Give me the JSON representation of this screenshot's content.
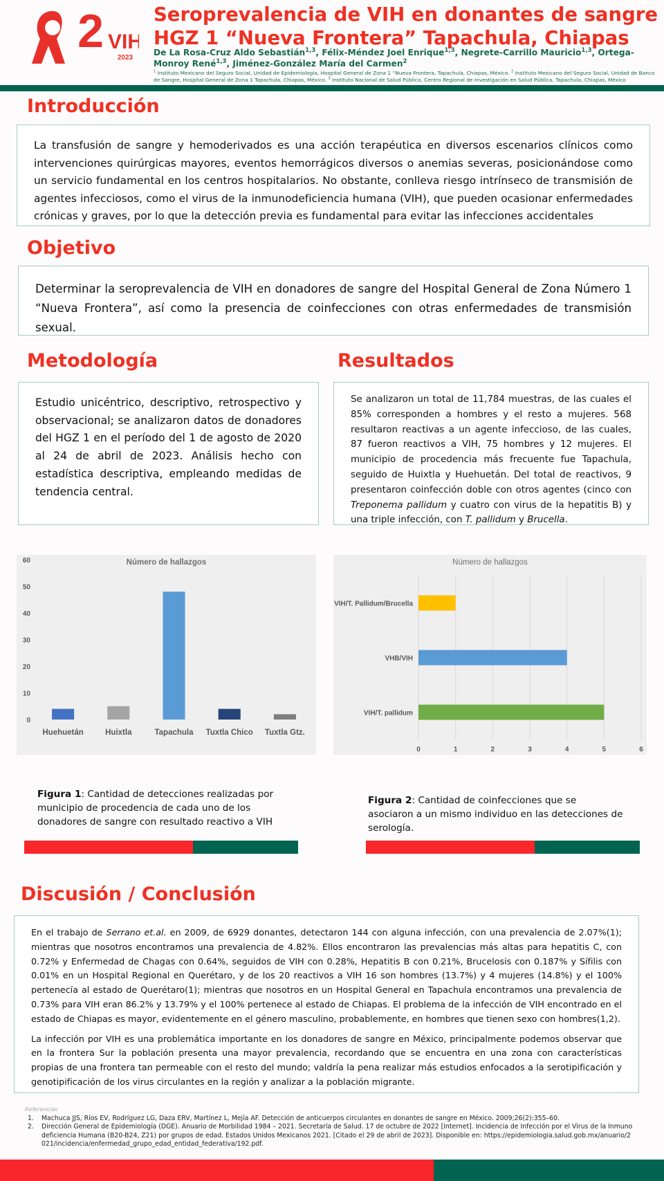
{
  "logo": {
    "number": "2",
    "text": "VIH",
    "year": "2023"
  },
  "header": {
    "title_lines": [
      "Seroprevalencia de VIH en donantes de sangre del",
      "HGZ 1 “Nueva Frontera” Tapachula, Chiapas"
    ],
    "authors": [
      {
        "t": "De La Rosa-Cruz Aldo Sebastián"
      },
      {
        "t": "1,3",
        "sup": true
      },
      {
        "t": ", Félix-Méndez Joel Enrique"
      },
      {
        "t": "1,3",
        "sup": true
      },
      {
        "t": ", Negrete-Carrillo Mauricio"
      },
      {
        "t": "1,3",
        "sup": true
      },
      {
        "t": ", Ortega-Monroy René"
      },
      {
        "t": "1,3",
        "sup": true
      },
      {
        "t": ", Jiménez-González María del Carmen"
      },
      {
        "t": "2",
        "sup": true
      }
    ],
    "affiliations": [
      {
        "t": "1",
        "sup": true
      },
      {
        "t": " Instituto Mexicano del Seguro Social, Unidad de Epidemiología, Hospital General de Zona 1 “Nueva Frontera, Tapachula, Chiapas, México. "
      },
      {
        "t": "2",
        "sup": true
      },
      {
        "t": " Instituto Mexicano del Seguro Social, Unidad de Banco de Sangre, Hospital General de Zona 1 Tapachula, Chiapas, México. "
      },
      {
        "t": "3",
        "sup": true
      },
      {
        "t": " Instituto Nacional de Salud Pública, Centro Regional de Investigación en Salud Pública, Tapachula, Chiapas, México"
      }
    ]
  },
  "introduccion": {
    "heading": "Introducción",
    "text": "La transfusión de sangre y hemoderivados es una acción terapéutica en diversos escenarios clínicos como intervenciones quirúrgicas mayores, eventos hemorrágicos diversos o anemias severas, posicionándose como un servicio fundamental en los centros hospitalarios. No obstante, conlleva riesgo intrínseco de transmisión de agentes infecciosos, como el virus de la inmunodeficiencia humana (VIH), que pueden ocasionar enfermedades crónicas y graves, por lo que la detección previa es fundamental para evitar las infecciones accidentales"
  },
  "objetivo": {
    "heading": "Objetivo",
    "text": "Determinar la seroprevalencia de VIH en donadores de sangre del Hospital General de Zona Número 1 “Nueva Frontera”, así como la presencia de coinfecciones con otras enfermedades de transmisión sexual."
  },
  "metodologia": {
    "heading": "Metodología",
    "text": "Estudio unicéntrico, descriptivo, retrospectivo y observacional; se analizaron datos de donadores del HGZ 1 en el período del 1 de agosto de 2020 al 24 de abril de 2023. Análisis hecho con estadística descriptiva, empleando medidas de tendencia central."
  },
  "resultados": {
    "heading": "Resultados",
    "runs": [
      {
        "t": "Se analizaron un total de 11,784 muestras, de las cuales el 85% corresponden a hombres y el resto a mujeres. 568 resultaron reactivas a un agente infeccioso, de las cuales, 87 fueron reactivos a VIH, 75 hombres y 12 mujeres. El municipio de procedencia más frecuente fue Tapachula, seguido de Huixtla y Huehuetán. Del total de reactivos, 9 presentaron coinfección doble con otros agentes (cinco con "
      },
      {
        "t": "Treponema pallidum",
        "i": true
      },
      {
        "t": " y cuatro con virus de la hepatitis B) y una triple infección, con "
      },
      {
        "t": "T. pallidum",
        "i": true
      },
      {
        "t": " y "
      },
      {
        "t": "Brucella",
        "i": true
      },
      {
        "t": "."
      }
    ]
  },
  "chart_data": [
    {
      "type": "bar",
      "title": "Número de hallazgos",
      "categories": [
        "Huehuetán",
        "Huixtla",
        "Tapachula",
        "Tuxtla Chico",
        "Tuxtla Gtz."
      ],
      "values": [
        4,
        5,
        48,
        4,
        2
      ],
      "colors": [
        "#4472c4",
        "#a5a5a5",
        "#5b9bd5",
        "#264478",
        "#7f7f7f"
      ],
      "ylim": [
        0,
        60
      ],
      "yticks": [
        0,
        10,
        20,
        30,
        40,
        50,
        60
      ],
      "grid": false
    },
    {
      "type": "bar",
      "horizontal": true,
      "title": "Número de hallazgos",
      "categories": [
        "VIH/T. Pallidum/Brucella",
        "VHB/VIH",
        "VIH/T. pallidum"
      ],
      "values": [
        1,
        4,
        5
      ],
      "colors": [
        "#ffc000",
        "#5b9bd5",
        "#70ad47"
      ],
      "xlim": [
        0,
        6
      ],
      "xticks": [
        0,
        1,
        2,
        3,
        4,
        5,
        6
      ],
      "grid": true
    }
  ],
  "figures": [
    {
      "runs": [
        {
          "t": "Figura 1",
          "b": true
        },
        {
          "t": ": Cantidad de detecciones realizadas por municipio de procedencia de cada uno de los donadores de sangre con resultado reactivo a VIH"
        }
      ]
    },
    {
      "runs": [
        {
          "t": "Figura 2",
          "b": true
        },
        {
          "t": ": Cantidad de coinfecciones que se asociaron a un mismo individuo en las detecciones de serología."
        }
      ]
    }
  ],
  "discusion": {
    "heading": "Discusión / Conclusión",
    "paragraphs": [
      [
        {
          "t": "En el trabajo de "
        },
        {
          "t": "Serrano et.al.",
          "i": true
        },
        {
          "t": " en 2009, de 6929 donantes, detectaron 144 con alguna infección, con una prevalencia de 2.07%(1); mientras que nosotros encontramos una prevalencia de 4.82%. Ellos encontraron las prevalencias más altas para hepatitis C, con 0.72% y Enfermedad de Chagas con 0.64%, seguidos de VIH con 0.28%, Hepatitis B con 0.21%, Brucelosis con 0.187% y Sífilis con 0.01% en un Hospital Regional en Querétaro, y de los 20 reactivos a VIH 16 son hombres (13.7%) y 4 mujeres (14.8%) y el 100% pertenecía al estado de Querétaro(1); mientras que nosotros en un Hospital General en Tapachula encontramos una prevalencia de 0.73% para VIH eran 86.2% y 13.79% y el 100% pertenece al estado de Chiapas. El problema de la infección de VIH encontrado en el estado de Chiapas es mayor, evidentemente en el género masculino, probablemente, en hombres que tienen sexo con hombres(1,2)."
        }
      ],
      [
        {
          "t": "La infección por VIH es una problemática importante en los donadores de sangre en México, principalmente podemos observar que en la frontera Sur la población presenta una mayor prevalencia, recordando que se encuentra en una zona con características propias de una frontera tan permeable con el resto del mundo; valdría la pena realizar más estudios enfocados a la serotipificación y genotipificación de los virus circulantes en la región y analizar a la población migrante."
        }
      ]
    ]
  },
  "referencias": {
    "label": "Referencias",
    "items": [
      {
        "n": "1.",
        "text": "Machuca JJS, Ríos EV, Rodríguez LG, Daza ERV, Martínez L, Mejía AF. Detección de anticuerpos circulantes en donantes de sangre en México. 2009;26(2):355–60."
      },
      {
        "n": "2.",
        "text": "Dirección General de Epidemiología (DGE). Anuario de Morbilidad 1984 – 2021. Secretaría de Salud. 17 de octubre de 2022 [Internet]. Incidencia de Infección por el Virus de la Inmunodeficiencia Humana (B20-B24, Z21) por grupos de edad. Estados Unidos Mexicanos 2021. [Citado el 29 de abril de 2023]. Disponible en: https://epidemiologia.salud.gob.mx/anuario/2021/incidencia/enfermedad_grupo_edad_entidad_federativa/192.pdf."
      }
    ]
  }
}
